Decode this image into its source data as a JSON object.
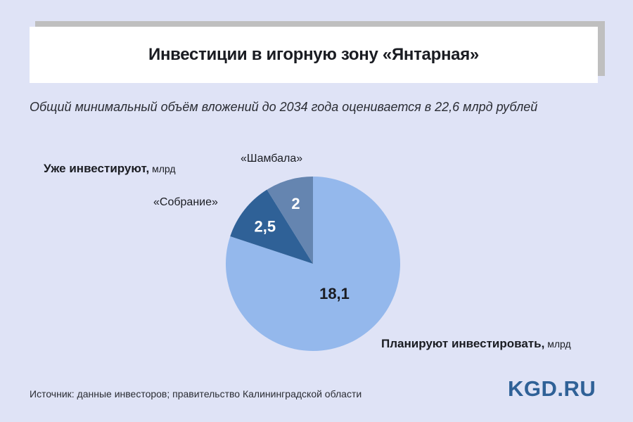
{
  "title": "Инвестиции в игорную зону «Янтарная»",
  "subtitle": "Общий минимальный объём вложений до 2034 года оценивается в 22,6 млрд рублей",
  "labels": {
    "already_bold": "Уже инвестируют,",
    "already_unit": " млрд",
    "planned_bold": "Планируют инвестировать,",
    "planned_unit": " млрд"
  },
  "source": "Источник: данные инвесторов; правительство Калининградской области",
  "logo": "KGD.RU",
  "chart_data": {
    "type": "pie",
    "title": "Инвестиции в игорную зону «Янтарная»",
    "total": 22.6,
    "slices": [
      {
        "name": "Планируют инвестировать",
        "value": 18.1,
        "label": "18,1",
        "color": "#94b8ec",
        "text_color": "#1a1c22"
      },
      {
        "name": "«Собрание»",
        "value": 2.5,
        "label": "2,5",
        "color": "#2f6197",
        "text_color": "#ffffff"
      },
      {
        "name": "«Шамбала»",
        "value": 2,
        "label": "2",
        "color": "#6585b0",
        "text_color": "#ffffff"
      }
    ]
  }
}
